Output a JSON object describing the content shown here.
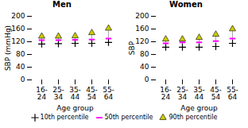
{
  "chart_data": [
    {
      "type": "range",
      "title": "Men",
      "xlabel": "Age group",
      "ylabel": "SBP (mmHg)",
      "categories": [
        "16-\n24",
        "25-\n34",
        "35-\n44",
        "45-\n54",
        "55-\n64"
      ],
      "series": [
        {
          "name": "10th percentile",
          "color": "#000000",
          "marker": "plus",
          "values": [
            113,
            114,
            115,
            115,
            118
          ]
        },
        {
          "name": "50th percentile",
          "color": "#ff00ff",
          "marker": "dash",
          "values": [
            125,
            125,
            126,
            127,
            130
          ]
        },
        {
          "name": "90th percentile",
          "color": "#cccc00",
          "marker": "triangle",
          "values": [
            137,
            137,
            138,
            148,
            162
          ]
        }
      ],
      "color": "#aaaaaa",
      "ylim": [
        0,
        200
      ],
      "yticks": [
        0,
        40,
        80,
        120,
        160,
        200
      ],
      "grid": false,
      "legend": "bottom"
    },
    {
      "type": "range",
      "title": "Women",
      "xlabel": "Age group",
      "ylabel": "SBP",
      "categories": [
        "16-\n24",
        "25-\n34",
        "35-\n44",
        "45-\n54",
        "55-\n64"
      ],
      "series": [
        {
          "name": "10th percentile",
          "color": "#000000",
          "marker": "plus",
          "values": [
            103,
            103,
            103,
            105,
            115
          ]
        },
        {
          "name": "50th percentile",
          "color": "#ff00ff",
          "marker": "dash",
          "values": [
            115,
            118,
            118,
            122,
            130
          ]
        },
        {
          "name": "90th percentile",
          "color": "#cccc00",
          "marker": "triangle",
          "values": [
            128,
            128,
            133,
            143,
            160
          ]
        }
      ],
      "color": "#aaaaaa",
      "ylim": [
        0,
        200
      ],
      "yticks": [
        0,
        40,
        80,
        120,
        160,
        200
      ],
      "grid": false,
      "legend": "bottom"
    }
  ]
}
